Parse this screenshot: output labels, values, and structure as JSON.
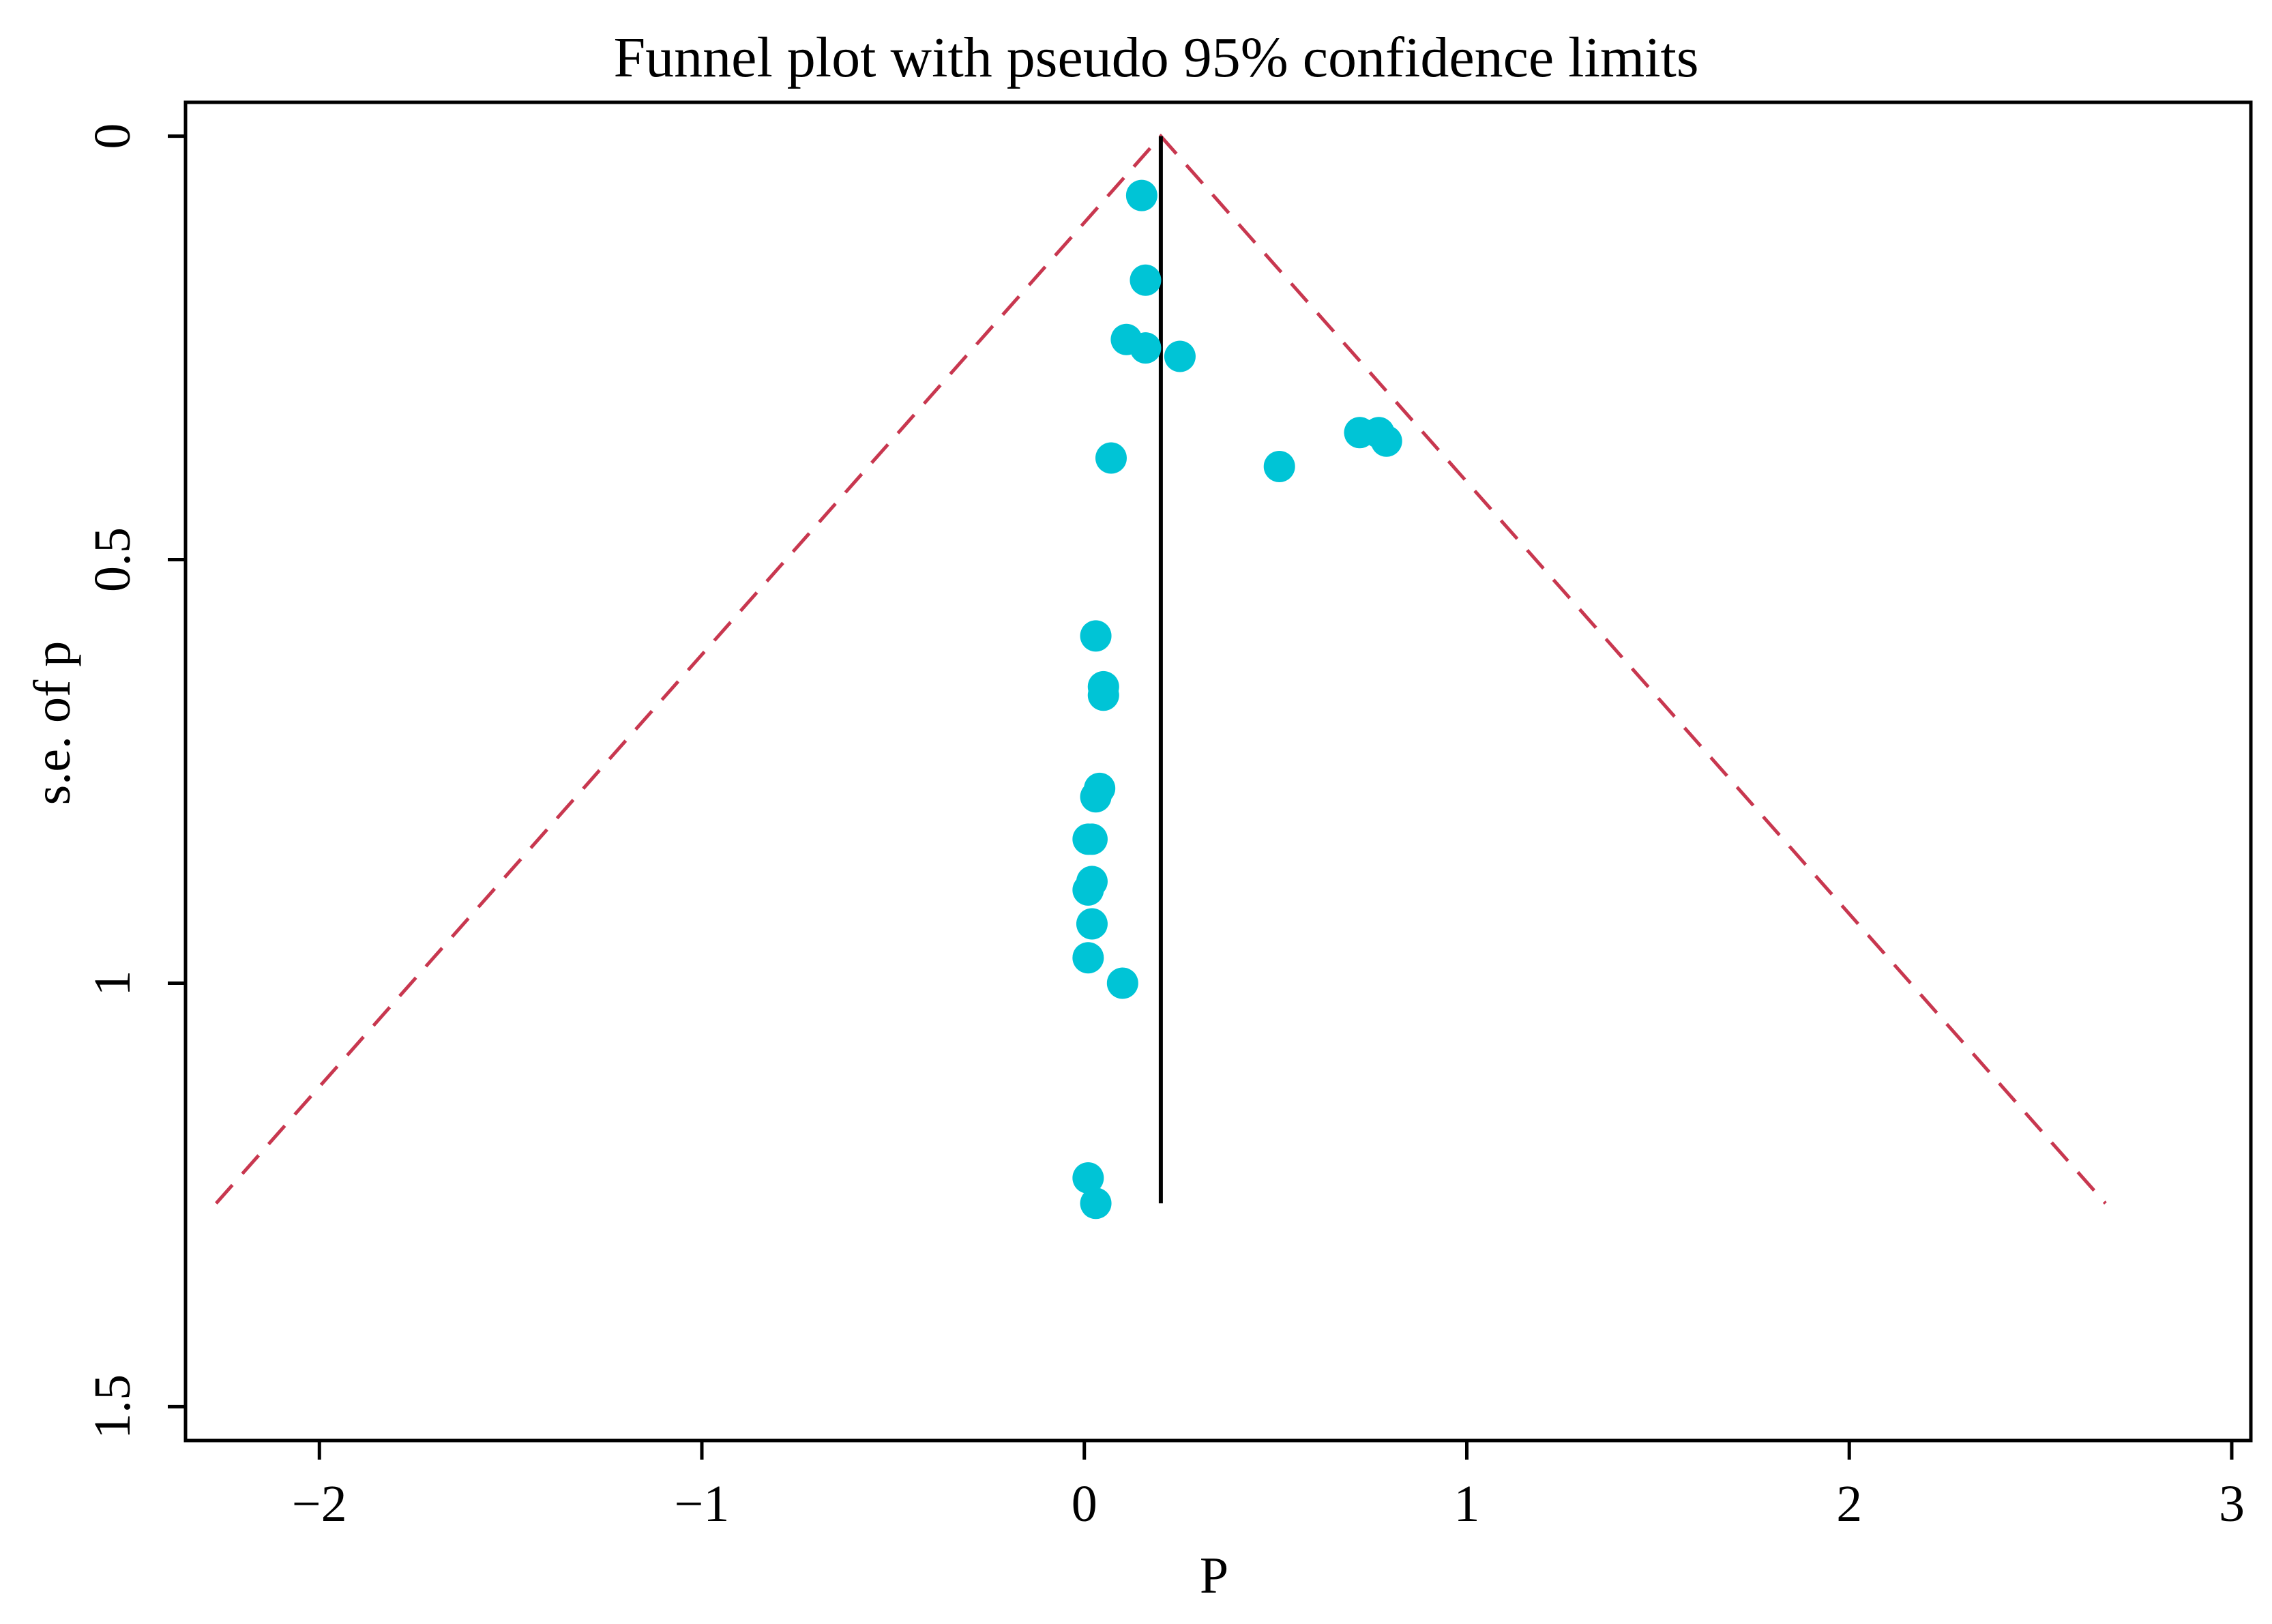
{
  "chart_data": {
    "type": "scatter",
    "title": "Funnel plot with pseudo 95% confidence limits",
    "xlabel": "P",
    "ylabel": "s.e. of p",
    "xlim": [
      -2.35,
      3.05
    ],
    "ylim": [
      1.54,
      -0.04
    ],
    "y_inverted": true,
    "x_ticks": [
      -2,
      -1,
      0,
      1,
      2,
      3
    ],
    "x_tick_labels": [
      "−2",
      "−1",
      "0",
      "1",
      "2",
      "3"
    ],
    "y_ticks": [
      0,
      0.5,
      1,
      1.5
    ],
    "y_tick_labels": [
      "0",
      "0.5",
      "1",
      "1.5"
    ],
    "pooled_estimate": 0.2,
    "pooled_line_se_range": [
      0,
      1.26
    ],
    "confidence_limits": {
      "label": "pseudo 95% confidence limits",
      "apex": [
        0.2,
        0
      ],
      "left_bottom": [
        -2.27,
        1.26
      ],
      "right_bottom": [
        2.67,
        1.26
      ],
      "color": "#c8374f"
    },
    "point_color": "#00c4d6",
    "points": [
      {
        "p": 0.15,
        "se": 0.07
      },
      {
        "p": 0.16,
        "se": 0.17
      },
      {
        "p": 0.11,
        "se": 0.24
      },
      {
        "p": 0.16,
        "se": 0.25
      },
      {
        "p": 0.25,
        "se": 0.26
      },
      {
        "p": 0.72,
        "se": 0.35
      },
      {
        "p": 0.77,
        "se": 0.35
      },
      {
        "p": 0.79,
        "se": 0.36
      },
      {
        "p": 0.51,
        "se": 0.39
      },
      {
        "p": 0.07,
        "se": 0.38
      },
      {
        "p": 0.03,
        "se": 0.59
      },
      {
        "p": 0.05,
        "se": 0.65
      },
      {
        "p": 0.05,
        "se": 0.66
      },
      {
        "p": 0.04,
        "se": 0.77
      },
      {
        "p": 0.03,
        "se": 0.78
      },
      {
        "p": 0.01,
        "se": 0.83
      },
      {
        "p": 0.02,
        "se": 0.83
      },
      {
        "p": 0.02,
        "se": 0.88
      },
      {
        "p": 0.01,
        "se": 0.89
      },
      {
        "p": 0.02,
        "se": 0.93
      },
      {
        "p": 0.01,
        "se": 0.97
      },
      {
        "p": 0.1,
        "se": 1.0
      },
      {
        "p": 0.01,
        "se": 1.23
      },
      {
        "p": 0.03,
        "se": 1.26
      }
    ]
  }
}
